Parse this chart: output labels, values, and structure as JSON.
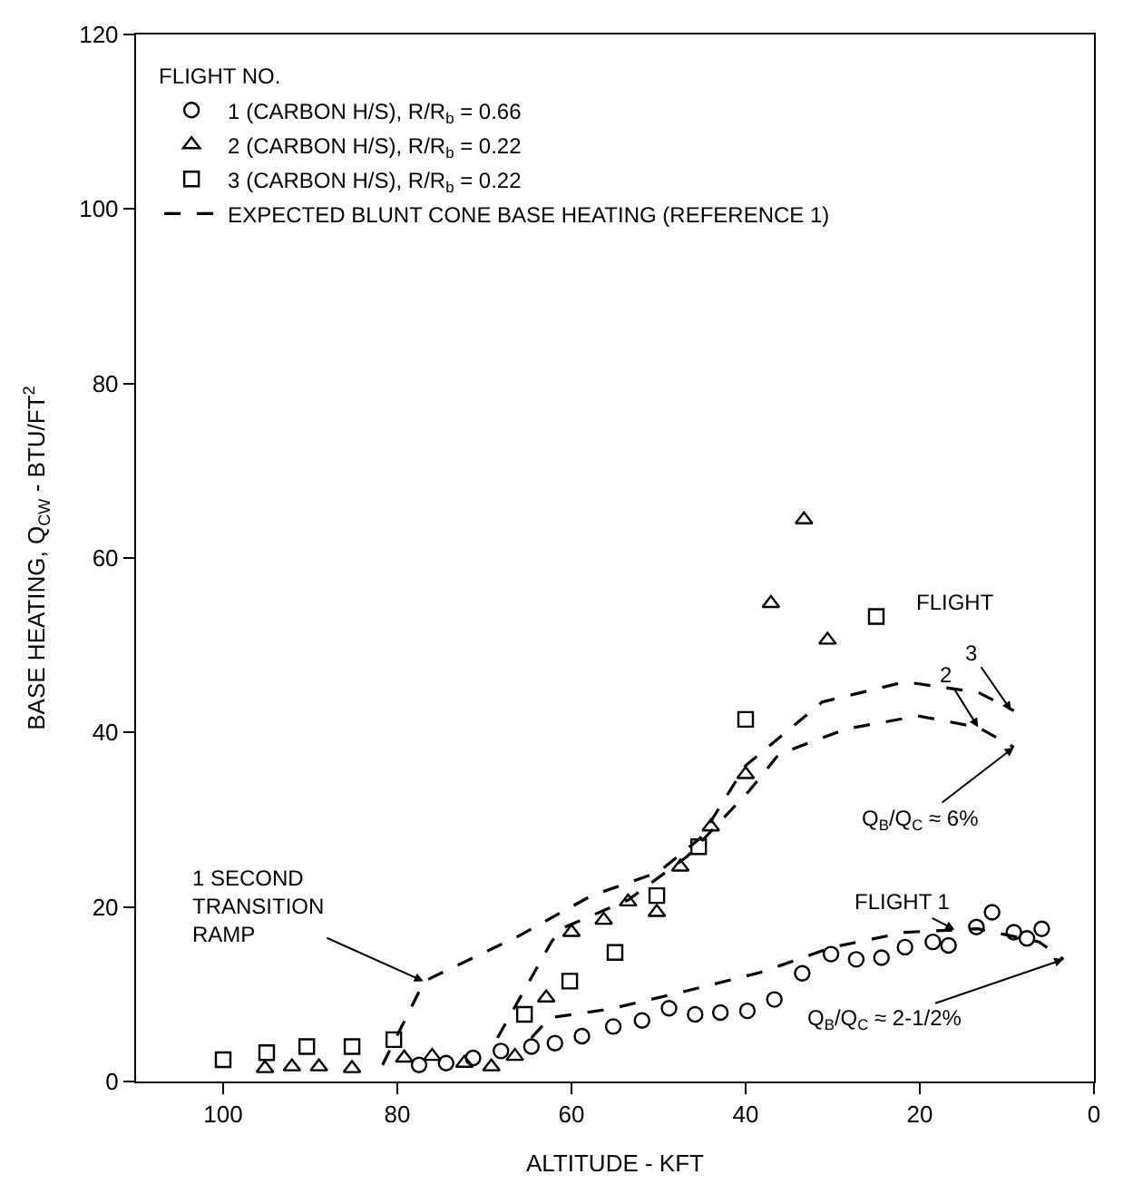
{
  "chart_data": {
    "type": "scatter",
    "xlabel": "ALTITUDE - KFT",
    "ylabel": "BASE HEATING, Q$_{CW}$ - BTU/FT$^{2}$",
    "legend_title": "FLIGHT NO.",
    "xlim": [
      110,
      0
    ],
    "xticks": [
      100,
      80,
      60,
      40,
      20,
      0
    ],
    "ylim": [
      0,
      120
    ],
    "yticks": [
      0,
      20,
      40,
      60,
      80,
      100,
      120
    ],
    "legend": "top left",
    "series": [
      {
        "name": "1 (CARBON H/S), R/R$_{b}$ = 0.66",
        "marker": "circle",
        "color": "#000000",
        "x": [
          77.5,
          74.4,
          71.3,
          68.1,
          64.6,
          61.9,
          58.8,
          55.2,
          51.9,
          48.8,
          45.8,
          42.9,
          39.8,
          36.7,
          33.5,
          30.2,
          27.3,
          24.4,
          21.7,
          18.5,
          16.7,
          13.5,
          11.7,
          9.2,
          7.7,
          6.0
        ],
        "values": [
          1.9,
          2.1,
          2.7,
          3.5,
          4.0,
          4.4,
          5.2,
          6.3,
          7.0,
          8.4,
          7.7,
          7.9,
          8.1,
          9.4,
          12.4,
          14.6,
          14.0,
          14.2,
          15.4,
          16.0,
          15.6,
          17.7,
          19.4,
          17.1,
          16.4,
          17.5
        ]
      },
      {
        "name": "2 (CARBON H/S), R/R$_{b}$ = 0.22",
        "marker": "triangle",
        "color": "#000000",
        "x": [
          95.2,
          92.1,
          89,
          85.2,
          79.2,
          76,
          72.3,
          69.2,
          66.5,
          62.9,
          60,
          56.3,
          53.5,
          50.2,
          47.5,
          44,
          40,
          37.1,
          33.3,
          30.6
        ],
        "values": [
          1.5,
          1.7,
          1.7,
          1.5,
          2.7,
          2.9,
          2.1,
          1.7,
          2.9,
          9.6,
          17.1,
          18.5,
          20.6,
          19.4,
          24.6,
          29.2,
          35.2,
          54.8,
          64.4,
          50.6
        ]
      },
      {
        "name": "3 (CARBON H/S), R/R$_{b}$ = 0.22",
        "marker": "square",
        "color": "#000000",
        "x": [
          100,
          95,
          90.4,
          85.2,
          80.4,
          65.4,
          60.2,
          55,
          50.2,
          45.4,
          40,
          25
        ],
        "values": [
          2.5,
          3.3,
          4,
          4,
          4.8,
          7.7,
          11.5,
          14.8,
          21.3,
          26.9,
          41.5,
          53.3
        ]
      },
      {
        "name": "EXPECTED BLUNT CONE BASE HEATING (REFERENCE 1)",
        "type": "line",
        "line_style": "dashed",
        "marker": "none",
        "color": "#000000",
        "x": [
          81.7,
          76.9,
          66,
          57.7,
          50,
          45.2,
          40,
          31.2,
          21.7,
          13.3,
          9.2
        ],
        "values": [
          1.9,
          11.5,
          16.7,
          21.3,
          24,
          27.9,
          36.2,
          43.5,
          45.8,
          44.6,
          42.5
        ]
      },
      {
        "type": "line",
        "line_style": "dashed",
        "marker": "none",
        "color": "#000000",
        "x": [
          68.5,
          62.3,
          61.2,
          53.5,
          46.7,
          39.6,
          36.2,
          28.5,
          20.2,
          13.3,
          9.2
        ],
        "values": [
          5,
          16,
          17.5,
          20.8,
          25.8,
          33.3,
          37.5,
          40.4,
          41.9,
          40.6,
          38.3
        ]
      },
      {
        "type": "line",
        "line_style": "dashed",
        "marker": "none",
        "color": "#000000",
        "x": [
          64.6,
          62.5,
          55.6,
          46.7,
          38.3,
          30,
          21.7,
          13.3,
          6.3,
          3.5
        ],
        "values": [
          5,
          7.3,
          8.3,
          10.4,
          12.5,
          15.4,
          17.1,
          17.5,
          16,
          14
        ]
      }
    ],
    "annotations": [
      {
        "text": "1 SECOND\nTRANSITION\nRAMP",
        "x": 77,
        "y": 11.5
      },
      "FLIGHT",
      {
        "text": "3",
        "x": 9.5,
        "y": 42.5
      },
      {
        "text": "2",
        "x": 13.3,
        "y": 40.6
      },
      {
        "text": "Q$_{B}$/Q$_{C}$ ≈ 6%",
        "x": 9.2,
        "y": 38.3
      },
      {
        "text": "FLIGHT 1",
        "x": 16,
        "y": 17.4
      },
      {
        "text": "Q$_{B}$/Q$_{C}$ ≈ 2-1/2%",
        "x": 3.5,
        "y": 14
      }
    ]
  }
}
